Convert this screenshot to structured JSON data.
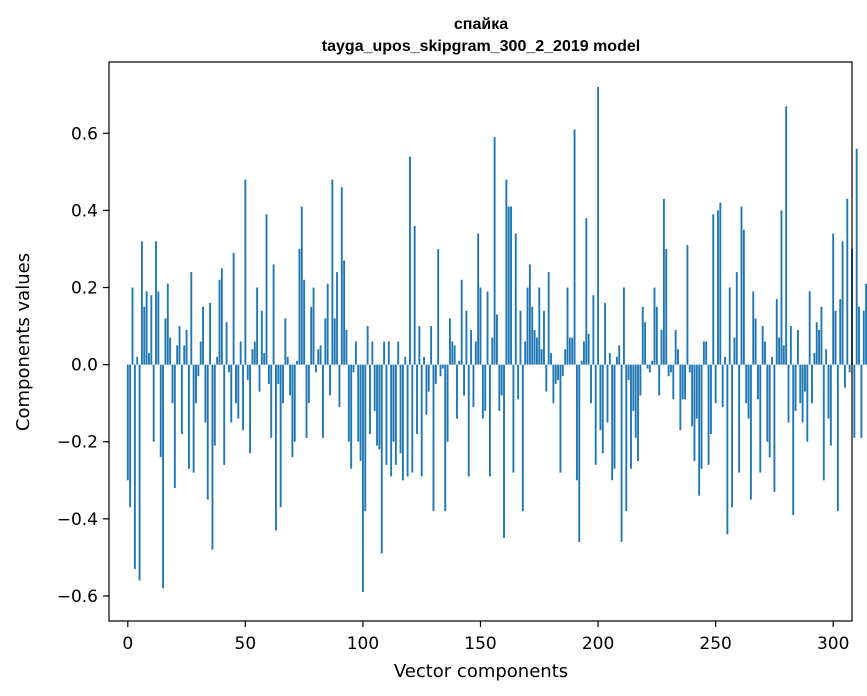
{
  "chart_data": {
    "type": "bar",
    "title": "спайка",
    "subtitle": "tayga_upos_skipgram_300_2_2019 model",
    "xlabel": "Vector components",
    "ylabel": "Components values",
    "xlim": [
      -8,
      308
    ],
    "ylim": [
      -0.665,
      0.785
    ],
    "xticks": [
      0,
      50,
      100,
      150,
      200,
      250,
      300
    ],
    "yticks": [
      -0.6,
      -0.4,
      -0.2,
      0.0,
      0.2,
      0.4,
      0.6
    ],
    "xtick_labels": [
      "0",
      "50",
      "100",
      "150",
      "200",
      "250",
      "300"
    ],
    "ytick_labels": [
      "−0.6",
      "−0.4",
      "−0.2",
      "0.0",
      "0.2",
      "0.4",
      "0.6"
    ],
    "bar_color": "#1f77b4",
    "grid": false,
    "legend": false,
    "values": [
      -0.3,
      -0.37,
      0.2,
      -0.53,
      0.02,
      -0.56,
      0.32,
      0.15,
      0.19,
      0.03,
      0.18,
      -0.2,
      0.32,
      0.19,
      -0.24,
      -0.58,
      0.12,
      0.21,
      0.07,
      -0.1,
      -0.32,
      0.05,
      0.1,
      -0.18,
      0.05,
      0.09,
      -0.27,
      0.24,
      -0.28,
      -0.1,
      -0.03,
      0.06,
      0.15,
      -0.15,
      -0.35,
      0.16,
      -0.48,
      -0.21,
      0.02,
      0.22,
      0.25,
      -0.26,
      0.11,
      -0.02,
      -0.15,
      0.29,
      -0.1,
      -0.14,
      0.06,
      -0.17,
      0.48,
      -0.04,
      -0.23,
      0.04,
      0.06,
      0.2,
      -0.07,
      0.14,
      0.03,
      0.39,
      -0.05,
      -0.19,
      0.26,
      -0.43,
      -0.05,
      -0.37,
      -0.1,
      0.12,
      0.02,
      -0.08,
      -0.24,
      -0.2,
      0.01,
      0.3,
      0.41,
      0.22,
      -0.19,
      -0.1,
      0.15,
      0.2,
      -0.02,
      0.04,
      0.05,
      -0.19,
      0.12,
      0.21,
      -0.08,
      0.48,
      0.12,
      0.24,
      -0.11,
      0.46,
      0.27,
      0.09,
      -0.2,
      -0.27,
      -0.02,
      0.06,
      -0.2,
      -0.25,
      -0.59,
      -0.38,
      0.1,
      -0.18,
      0.06,
      -0.12,
      -0.21,
      -0.22,
      -0.49,
      0.06,
      -0.26,
      0.06,
      -0.29,
      -0.2,
      -0.26,
      0.06,
      -0.23,
      -0.3,
      0.02,
      -0.29,
      0.54,
      -0.28,
      0.36,
      -0.18,
      0.1,
      -0.29,
      0.02,
      -0.13,
      -0.07,
      0.1,
      -0.38,
      -0.05,
      0.3,
      -0.03,
      -0.01,
      -0.38,
      -0.2,
      0.12,
      0.06,
      0.05,
      -0.14,
      0.01,
      0.22,
      -0.08,
      0.14,
      -0.29,
      0.09,
      -0.11,
      0.06,
      0.34,
      0.2,
      -0.14,
      -0.12,
      0.19,
      -0.29,
      0.07,
      0.59,
      0.13,
      -0.12,
      -0.08,
      -0.45,
      0.48,
      0.41,
      0.41,
      -0.28,
      0.34,
      -0.09,
      0.14,
      -0.38,
      0.06,
      0.2,
      0.26,
      0.15,
      0.09,
      0.07,
      0.2,
      0.04,
      0.14,
      -0.07,
      0.24,
      0.03,
      -0.1,
      -0.05,
      -0.04,
      -0.28,
      -0.03,
      0.04,
      0.2,
      0.07,
      0.07,
      0.61,
      -0.3,
      -0.46,
      0.01,
      0.06,
      0.38,
      0.08,
      -0.1,
      0.18,
      -0.26,
      0.72,
      -0.17,
      -0.23,
      0.16,
      -0.15,
      0.03,
      -0.3,
      -0.27,
      0.02,
      0.05,
      -0.46,
      0.2,
      -0.38,
      -0.04,
      -0.27,
      -0.12,
      -0.19,
      -0.25,
      -0.08,
      0.15,
      0.11,
      -0.01,
      -0.02,
      0.01,
      0.2,
      0.15,
      -0.08,
      0.09,
      0.43,
      0.3,
      -0.03,
      -0.02,
      -0.09,
      0.09,
      0.04,
      -0.17,
      -0.09,
      -0.09,
      0.31,
      -0.02,
      -0.16,
      -0.25,
      -0.14,
      -0.34,
      -0.27,
      0.06,
      0.06,
      -0.26,
      -0.18,
      0.39,
      -0.1,
      0.4,
      0.42,
      -0.11,
      0.02,
      -0.44,
      0.2,
      -0.37,
      0.07,
      0.24,
      -0.28,
      0.41,
      0.35,
      -0.1,
      -0.14,
      -0.35,
      0.19,
      0.12,
      -0.09,
      -0.28,
      0.1,
      0.06,
      -0.2,
      -0.24,
      0.02,
      -0.33,
      0.17,
      0.07,
      0.4,
      0.05,
      0.67,
      -0.15,
      0.1,
      -0.39,
      -0.12,
      0.09,
      -0.1,
      -0.15,
      -0.07,
      -0.2,
      0.19,
      -0.1,
      0.03,
      0.11,
      0.09,
      0.15,
      -0.3,
      0.04,
      -0.14,
      -0.21,
      0.34,
      0.14,
      -0.38,
      0.17,
      0.32,
      -0.06,
      0.43,
      -0.02,
      0.3,
      -0.19,
      0.56,
      0.15,
      -0.19,
      0.14,
      0.21,
      0.02
    ]
  }
}
